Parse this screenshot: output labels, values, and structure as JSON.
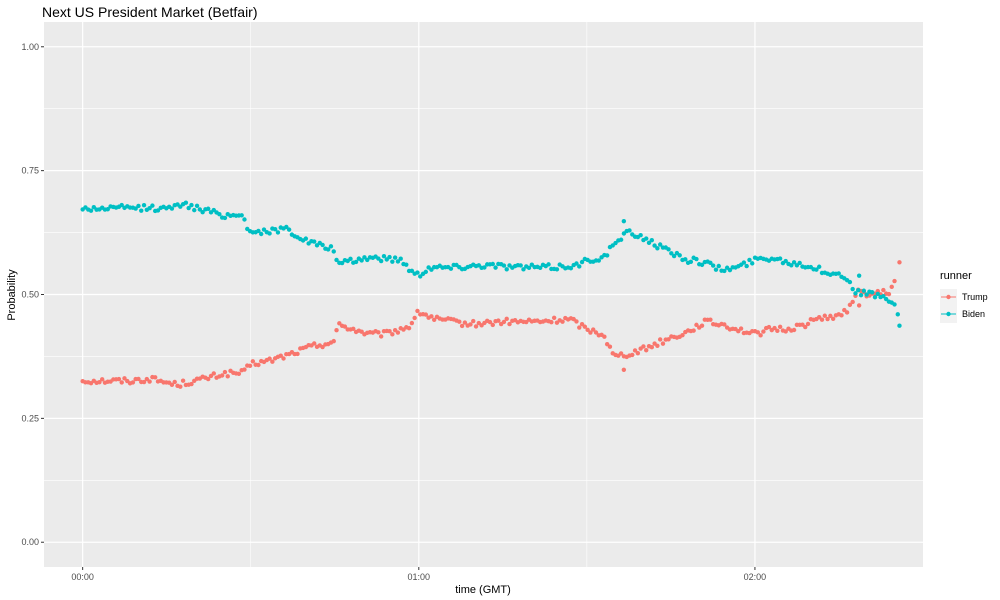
{
  "chart_data": {
    "type": "scatter",
    "title": "Next US President Market (Betfair)",
    "xlabel": "time (GMT)",
    "ylabel": "Probability",
    "xlim": [
      -0.115,
      2.5
    ],
    "ylim": [
      -0.05,
      1.05
    ],
    "x_unit": "hours",
    "x_ticks": [
      0,
      1,
      2
    ],
    "x_tick_labels": [
      "00:00",
      "01:00",
      "02:00"
    ],
    "y_ticks": [
      0,
      0.25,
      0.5,
      0.75,
      1
    ],
    "y_tick_labels": [
      "0.00",
      "0.25",
      "0.50",
      "0.75",
      "1.00"
    ],
    "grid": true,
    "legend": {
      "title": "runner",
      "position": "right"
    },
    "series": [
      {
        "name": "Trump",
        "color": "#F8766D",
        "anchors": [
          [
            0,
            0.326
          ],
          [
            0.15,
            0.326
          ],
          [
            0.2,
            0.33
          ],
          [
            0.28,
            0.318
          ],
          [
            0.35,
            0.328
          ],
          [
            0.42,
            0.34
          ],
          [
            0.48,
            0.342
          ],
          [
            0.5,
            0.36
          ],
          [
            0.55,
            0.365
          ],
          [
            0.62,
            0.38
          ],
          [
            0.68,
            0.395
          ],
          [
            0.75,
            0.405
          ],
          [
            0.76,
            0.44
          ],
          [
            0.85,
            0.42
          ],
          [
            0.9,
            0.42
          ],
          [
            0.97,
            0.435
          ],
          [
            1.0,
            0.465
          ],
          [
            1.05,
            0.45
          ],
          [
            1.15,
            0.44
          ],
          [
            1.25,
            0.445
          ],
          [
            1.35,
            0.445
          ],
          [
            1.45,
            0.45
          ],
          [
            1.5,
            0.43
          ],
          [
            1.55,
            0.42
          ],
          [
            1.58,
            0.375
          ],
          [
            1.62,
            0.38
          ],
          [
            1.67,
            0.39
          ],
          [
            1.72,
            0.405
          ],
          [
            1.8,
            0.425
          ],
          [
            1.85,
            0.445
          ],
          [
            1.9,
            0.44
          ],
          [
            1.95,
            0.43
          ],
          [
            2.0,
            0.42
          ],
          [
            2.05,
            0.43
          ],
          [
            2.1,
            0.43
          ],
          [
            2.15,
            0.44
          ],
          [
            2.2,
            0.455
          ],
          [
            2.25,
            0.455
          ],
          [
            2.28,
            0.47
          ],
          [
            2.3,
            0.505
          ],
          [
            2.35,
            0.5
          ],
          [
            2.4,
            0.505
          ],
          [
            2.42,
            0.53
          ]
        ],
        "extra": [
          [
            2.43,
            0.565
          ],
          [
            1.61,
            0.348
          ],
          [
            2.31,
            0.478
          ]
        ]
      },
      {
        "name": "Biden",
        "color": "#00BFC4",
        "anchors": [
          [
            0,
            0.673
          ],
          [
            0.15,
            0.675
          ],
          [
            0.2,
            0.675
          ],
          [
            0.25,
            0.672
          ],
          [
            0.28,
            0.685
          ],
          [
            0.35,
            0.672
          ],
          [
            0.42,
            0.66
          ],
          [
            0.48,
            0.66
          ],
          [
            0.49,
            0.63
          ],
          [
            0.55,
            0.625
          ],
          [
            0.6,
            0.635
          ],
          [
            0.66,
            0.61
          ],
          [
            0.7,
            0.6
          ],
          [
            0.75,
            0.59
          ],
          [
            0.76,
            0.56
          ],
          [
            0.85,
            0.575
          ],
          [
            0.95,
            0.57
          ],
          [
            0.98,
            0.545
          ],
          [
            1.0,
            0.54
          ],
          [
            1.03,
            0.555
          ],
          [
            1.1,
            0.555
          ],
          [
            1.2,
            0.56
          ],
          [
            1.3,
            0.555
          ],
          [
            1.4,
            0.555
          ],
          [
            1.48,
            0.56
          ],
          [
            1.5,
            0.57
          ],
          [
            1.55,
            0.575
          ],
          [
            1.58,
            0.6
          ],
          [
            1.62,
            0.625
          ],
          [
            1.67,
            0.615
          ],
          [
            1.72,
            0.595
          ],
          [
            1.8,
            0.57
          ],
          [
            1.85,
            0.565
          ],
          [
            1.9,
            0.55
          ],
          [
            1.95,
            0.555
          ],
          [
            2.0,
            0.57
          ],
          [
            2.05,
            0.575
          ],
          [
            2.1,
            0.565
          ],
          [
            2.15,
            0.56
          ],
          [
            2.2,
            0.548
          ],
          [
            2.25,
            0.54
          ],
          [
            2.28,
            0.53
          ],
          [
            2.3,
            0.505
          ],
          [
            2.35,
            0.5
          ],
          [
            2.4,
            0.49
          ],
          [
            2.42,
            0.47
          ]
        ],
        "extra": [
          [
            1.61,
            0.648
          ],
          [
            2.43,
            0.437
          ],
          [
            2.31,
            0.538
          ],
          [
            2.425,
            0.46
          ]
        ]
      }
    ]
  }
}
